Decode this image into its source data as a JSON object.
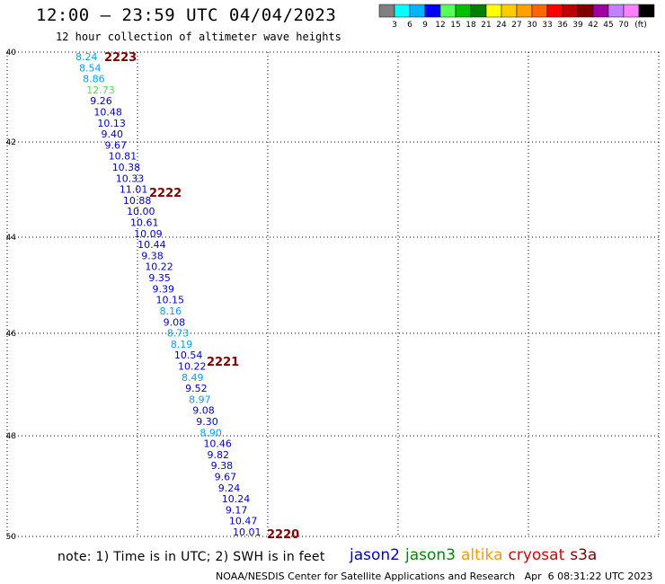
{
  "title": "12:00 – 23:59 UTC 04/04/2023",
  "subtitle": "12 hour collection of altimeter wave heights",
  "colorbar": {
    "colors": [
      "#808080",
      "#00ffff",
      "#00b4ff",
      "#0000ff",
      "#55ff55",
      "#00c000",
      "#008000",
      "#ffff00",
      "#ffcc00",
      "#ffa000",
      "#ff6600",
      "#ff0000",
      "#c00000",
      "#800000",
      "#a000a0",
      "#c080ff",
      "#ff80ff",
      "#000000"
    ],
    "labels": [
      "3",
      "6",
      "9",
      "12",
      "15",
      "18",
      "21",
      "24",
      "27",
      "30",
      "33",
      "36",
      "39",
      "42",
      "45",
      "70"
    ],
    "unit": "(ft)"
  },
  "axes": {
    "y_ticks": [
      "40",
      "42",
      "44",
      "46",
      "48",
      "50"
    ],
    "x_ticks": [
      "0",
      "3",
      "6",
      "9",
      "12",
      "15"
    ]
  },
  "track_points": [
    {
      "label": "8.24",
      "color": "#00a0ff"
    },
    {
      "label": "8.54",
      "color": "#00a0ff"
    },
    {
      "label": "8.86",
      "color": "#00a0ff"
    },
    {
      "label": "12.73",
      "color": "#55dd55"
    },
    {
      "label": "9.26",
      "color": "#0000cc"
    },
    {
      "label": "10.48",
      "color": "#0000cc"
    },
    {
      "label": "10.13",
      "color": "#0000cc"
    },
    {
      "label": "9.40",
      "color": "#0000cc"
    },
    {
      "label": "9.67",
      "color": "#0000cc"
    },
    {
      "label": "10.81",
      "color": "#0000cc"
    },
    {
      "label": "10.38",
      "color": "#0000cc"
    },
    {
      "label": "10.33",
      "color": "#0000cc"
    },
    {
      "label": "11.01",
      "color": "#0000cc"
    },
    {
      "label": "10.88",
      "color": "#0000cc"
    },
    {
      "label": "10.00",
      "color": "#0000cc"
    },
    {
      "label": "10.61",
      "color": "#0000cc"
    },
    {
      "label": "10.09",
      "color": "#0000cc"
    },
    {
      "label": "10.44",
      "color": "#0000cc"
    },
    {
      "label": "9.38",
      "color": "#0000cc"
    },
    {
      "label": "10.22",
      "color": "#0000cc"
    },
    {
      "label": "9.35",
      "color": "#0000cc"
    },
    {
      "label": "9.39",
      "color": "#0000cc"
    },
    {
      "label": "10.15",
      "color": "#0000cc"
    },
    {
      "label": "8.16",
      "color": "#00a0ff"
    },
    {
      "label": "9.08",
      "color": "#0000cc"
    },
    {
      "label": "8.73",
      "color": "#00a0ff"
    },
    {
      "label": "8.19",
      "color": "#00a0ff"
    },
    {
      "label": "10.54",
      "color": "#0000cc"
    },
    {
      "label": "10.22",
      "color": "#0000cc"
    },
    {
      "label": "8.49",
      "color": "#00a0ff"
    },
    {
      "label": "9.52",
      "color": "#0000cc"
    },
    {
      "label": "8.97",
      "color": "#00a0ff"
    },
    {
      "label": "9.08",
      "color": "#0000cc"
    },
    {
      "label": "9.30",
      "color": "#0000cc"
    },
    {
      "label": "8.90",
      "color": "#00a0ff"
    },
    {
      "label": "10.46",
      "color": "#0000cc"
    },
    {
      "label": "9.82",
      "color": "#0000cc"
    },
    {
      "label": "9.38",
      "color": "#0000cc"
    },
    {
      "label": "9.67",
      "color": "#0000cc"
    },
    {
      "label": "9.24",
      "color": "#0000cc"
    },
    {
      "label": "10.24",
      "color": "#0000cc"
    },
    {
      "label": "9.17",
      "color": "#0000cc"
    },
    {
      "label": "10.47",
      "color": "#0000cc"
    },
    {
      "label": "10.01",
      "color": "#0000cc"
    }
  ],
  "time_labels": [
    {
      "text": "2223",
      "color": "#800000"
    },
    {
      "text": "2222",
      "color": "#800000"
    },
    {
      "text": "2221",
      "color": "#800000"
    },
    {
      "text": "2220",
      "color": "#800000"
    }
  ],
  "footer": {
    "note": "note: 1) Time is in UTC; 2) SWH is in feet",
    "satellites": [
      {
        "name": "jason2",
        "color": "#0000cc"
      },
      {
        "name": "jason3",
        "color": "#008800"
      },
      {
        "name": "altika",
        "color": "#ff9900"
      },
      {
        "name": "cryosat",
        "color": "#dd0000"
      },
      {
        "name": "s3a",
        "color": "#800000"
      }
    ],
    "credit": "NOAA/NESDIS Center for Satellite Applications and Research   Apr  6 08:31:22 UTC 2023"
  }
}
